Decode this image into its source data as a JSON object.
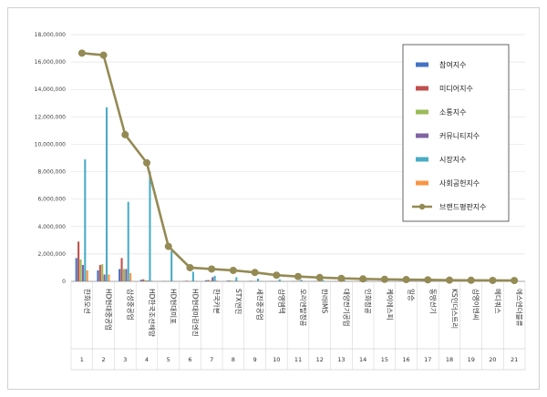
{
  "chart_data": {
    "type": "bar",
    "title": "",
    "xlabel": "",
    "ylabel": "",
    "ylim": [
      0,
      18000000
    ],
    "yticks": [
      "0",
      "2,000,000",
      "4,000,000",
      "6,000,000",
      "8,000,000",
      "10,000,000",
      "12,000,000",
      "14,000,000",
      "16,000,000",
      "18,000,000"
    ],
    "grid": true,
    "legend_position": "top-right",
    "categories": [
      "한화오션",
      "HD현대중공업",
      "삼성중공업",
      "HD한국조선해양",
      "HD현대미포",
      "HD현대마린엔진",
      "한국카본",
      "STX엔진",
      "세진중공업",
      "삼영엠텍",
      "오리엔탈정공",
      "한라IMS",
      "대양전기공업",
      "인화정공",
      "케이에스피",
      "일승",
      "동방선기",
      "KS인더스트리",
      "삼영이엔씨",
      "메디쿼스",
      "에스엔더블류"
    ],
    "indices": [
      "1",
      "2",
      "3",
      "4",
      "5",
      "6",
      "7",
      "8",
      "9",
      "10",
      "11",
      "12",
      "13",
      "14",
      "15",
      "16",
      "17",
      "18",
      "19",
      "20",
      "21"
    ],
    "series": [
      {
        "name": "참여지수",
        "color": "#4472c4",
        "values": [
          1700000,
          800000,
          900000,
          120000,
          30000,
          30000,
          80000,
          60000,
          30000,
          20000,
          20000,
          15000,
          15000,
          10000,
          10000,
          8000,
          8000,
          6000,
          6000,
          5000,
          5000
        ]
      },
      {
        "name": "미디어지수",
        "color": "#c0504d",
        "values": [
          2900000,
          1200000,
          1700000,
          150000,
          30000,
          50000,
          100000,
          60000,
          40000,
          30000,
          25000,
          20000,
          15000,
          15000,
          10000,
          10000,
          8000,
          6000,
          6000,
          5000,
          5000
        ]
      },
      {
        "name": "소통지수",
        "color": "#9bbb59",
        "values": [
          1600000,
          1250000,
          900000,
          80000,
          20000,
          20000,
          60000,
          50000,
          20000,
          15000,
          15000,
          10000,
          10000,
          8000,
          8000,
          6000,
          6000,
          5000,
          5000,
          4000,
          4000
        ]
      },
      {
        "name": "커뮤니티지수",
        "color": "#8064a2",
        "values": [
          1200000,
          500000,
          900000,
          60000,
          20000,
          20000,
          300000,
          40000,
          20000,
          15000,
          10000,
          10000,
          8000,
          8000,
          6000,
          6000,
          5000,
          5000,
          4000,
          4000,
          3000
        ]
      },
      {
        "name": "시장지수",
        "color": "#4bacc6",
        "values": [
          8900000,
          12700000,
          5800000,
          8000000,
          2200000,
          700000,
          400000,
          300000,
          200000,
          150000,
          120000,
          100000,
          80000,
          60000,
          50000,
          40000,
          30000,
          25000,
          20000,
          15000,
          10000
        ]
      },
      {
        "name": "사회공헌지수",
        "color": "#f79646",
        "values": [
          800000,
          500000,
          600000,
          40000,
          20000,
          15000,
          50000,
          30000,
          15000,
          10000,
          10000,
          8000,
          6000,
          6000,
          5000,
          4000,
          4000,
          3000,
          3000,
          2000,
          2000
        ]
      }
    ],
    "line_series": {
      "name": "브랜드평판지수",
      "color": "#948a54",
      "values": [
        16650000,
        16500000,
        10700000,
        8650000,
        2550000,
        1000000,
        900000,
        800000,
        650000,
        450000,
        350000,
        280000,
        220000,
        180000,
        150000,
        130000,
        110000,
        90000,
        80000,
        70000,
        60000
      ]
    }
  }
}
